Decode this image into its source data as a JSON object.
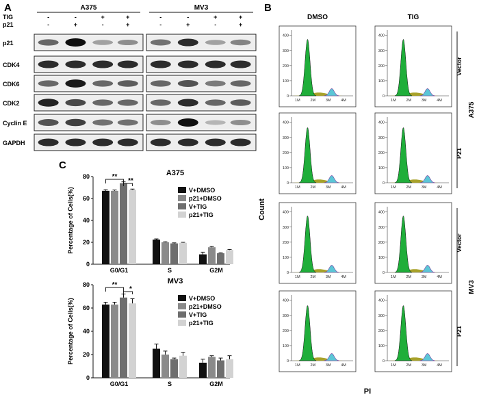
{
  "panels": {
    "A": "A",
    "B": "B",
    "C": "C"
  },
  "western": {
    "cell_lines": [
      "A375",
      "MV3"
    ],
    "row_labels": [
      "TIG",
      "p21"
    ],
    "treatment": {
      "TIG": [
        "-",
        "-",
        "+",
        "+"
      ],
      "p21": [
        "-",
        "+",
        "-",
        "+"
      ]
    },
    "proteins": [
      "p21",
      "CDK4",
      "CDK6",
      "CDK2",
      "Cyclin E",
      "GAPDH"
    ],
    "intensity": {
      "A375": [
        [
          0.55,
          1.0,
          0.25,
          0.35
        ],
        [
          0.85,
          0.85,
          0.85,
          0.85
        ],
        [
          0.55,
          0.95,
          0.55,
          0.6
        ],
        [
          0.9,
          0.7,
          0.55,
          0.55
        ],
        [
          0.65,
          0.75,
          0.5,
          0.5
        ],
        [
          0.85,
          0.85,
          0.85,
          0.85
        ]
      ],
      "MV3": [
        [
          0.5,
          0.85,
          0.25,
          0.4
        ],
        [
          0.85,
          0.85,
          0.85,
          0.85
        ],
        [
          0.55,
          0.65,
          0.45,
          0.55
        ],
        [
          0.55,
          0.85,
          0.55,
          0.6
        ],
        [
          0.35,
          1.0,
          0.15,
          0.35
        ],
        [
          0.85,
          0.85,
          0.85,
          0.85
        ]
      ]
    }
  },
  "flow": {
    "col_headers": [
      "DMSO",
      "TIG"
    ],
    "row_groups": [
      {
        "cell_line": "A375",
        "rows": [
          "Vector",
          "P21"
        ]
      },
      {
        "cell_line": "MV3",
        "rows": [
          "Vector",
          "P21"
        ]
      }
    ],
    "y_ticks": [
      "0",
      "100",
      "200",
      "300",
      "400"
    ],
    "x_ticks": [
      "1M",
      "2M",
      "3M",
      "4M"
    ],
    "x_label": "PI",
    "y_label": "Count",
    "colors": {
      "g1": "#1fae3a",
      "s": "#a8a22a",
      "g2": "#5bc6d6"
    }
  },
  "chart_data": [
    {
      "type": "bar",
      "title": "A375",
      "ylabel": "Percentage of Cells(%)",
      "categories": [
        "G0/G1",
        "S",
        "G2M"
      ],
      "ylim": [
        0,
        80
      ],
      "yticks": [
        "0",
        "20",
        "40",
        "60",
        "80"
      ],
      "series": [
        {
          "name": "V+DMSO",
          "color": "#111111",
          "values": [
            67,
            22.5,
            9
          ],
          "errors": [
            1,
            0.6,
            2
          ]
        },
        {
          "name": "p21+DMSO",
          "color": "#8a8a8a",
          "values": [
            67,
            20,
            15.5
          ],
          "errors": [
            0.8,
            0.5,
            0.6
          ]
        },
        {
          "name": "V+TIG",
          "color": "#6e6e6e",
          "values": [
            74,
            19,
            10
          ],
          "errors": [
            1.2,
            0.5,
            0.4
          ]
        },
        {
          "name": "p21+TIG",
          "color": "#d2d2d2",
          "values": [
            68,
            19.5,
            13
          ],
          "errors": [
            0.6,
            0.5,
            0.5
          ]
        }
      ],
      "significance": [
        "**",
        "**"
      ]
    },
    {
      "type": "bar",
      "title": "MV3",
      "ylabel": "Percentage of Cells(%)",
      "categories": [
        "G0/G1",
        "S",
        "G2M"
      ],
      "ylim": [
        0,
        80
      ],
      "yticks": [
        "0",
        "20",
        "40",
        "60",
        "80"
      ],
      "series": [
        {
          "name": "V+DMSO",
          "color": "#111111",
          "values": [
            63,
            25,
            13
          ],
          "errors": [
            2,
            4,
            3
          ]
        },
        {
          "name": "p21+DMSO",
          "color": "#8a8a8a",
          "values": [
            63,
            20,
            18
          ],
          "errors": [
            2,
            3,
            1
          ]
        },
        {
          "name": "V+TIG",
          "color": "#6e6e6e",
          "values": [
            69,
            16,
            15
          ],
          "errors": [
            3,
            1,
            2
          ]
        },
        {
          "name": "p21+TIG",
          "color": "#d2d2d2",
          "values": [
            64,
            19,
            16
          ],
          "errors": [
            4,
            3,
            3
          ]
        }
      ],
      "significance": [
        "**",
        "*"
      ]
    }
  ]
}
